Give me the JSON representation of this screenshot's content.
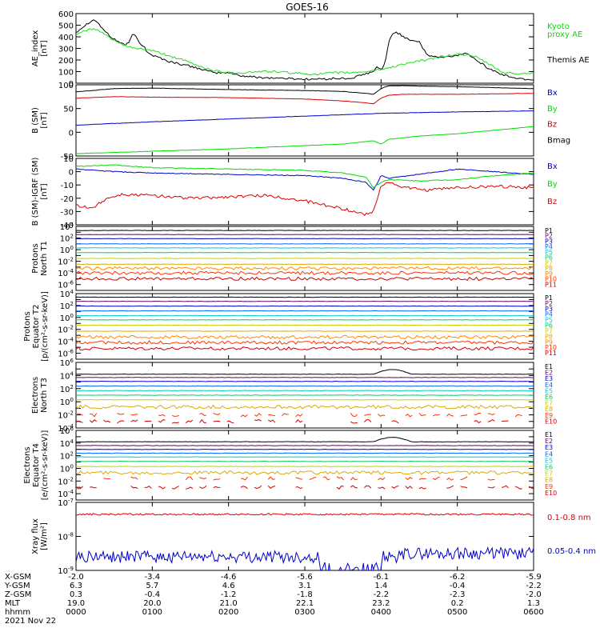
{
  "title": "GOES-16",
  "colors": {
    "black": "#000000",
    "red": "#dd0000",
    "green": "#00dd00",
    "blue": "#0000cc",
    "ae_green": "#22dd22",
    "P": [
      "#000000",
      "#660066",
      "#0000cc",
      "#0066ff",
      "#00cccc",
      "#00cc66",
      "#cccc00",
      "#ddaa00",
      "#ff8800",
      "#ff3300",
      "#cc0000"
    ],
    "E": [
      "#000000",
      "#660066",
      "#0000cc",
      "#0066ff",
      "#00cccc",
      "#00cc66",
      "#cccc00",
      "#ddaa00",
      "#ff3300",
      "#cc0000"
    ]
  },
  "chart_data": [
    {
      "type": "line",
      "name": "ae",
      "ylabel": "AE_index\n[nT]",
      "ylim": [
        0,
        600
      ],
      "ticks": [
        "0",
        "100",
        "200",
        "300",
        "400",
        "500",
        "600"
      ],
      "legend": [
        [
          "Kyoto",
          "green"
        ],
        [
          "proxy AE",
          "green"
        ],
        [
          "Themis AE",
          "black"
        ]
      ],
      "series": [
        {
          "name": "Themis AE",
          "color": "black",
          "x": [
            0,
            0.1,
            0.2,
            0.25,
            0.3,
            0.35,
            0.45,
            0.55,
            0.65,
            0.7,
            0.75,
            0.8,
            0.85,
            0.9,
            0.92,
            0.96,
            1.0,
            1.1,
            1.2,
            1.4,
            1.6,
            1.8,
            2.0,
            2.2,
            2.4,
            2.6,
            2.8,
            3.0,
            3.2,
            3.4,
            3.6,
            3.7,
            3.8,
            3.9,
            3.95,
            4.0,
            4.05,
            4.1,
            4.15,
            4.2,
            4.3,
            4.4,
            4.5,
            4.6,
            4.8,
            5.0,
            5.1,
            5.2,
            5.3,
            5.4,
            5.6,
            5.8,
            6.0
          ],
          "y": [
            440,
            490,
            540,
            545,
            510,
            470,
            400,
            360,
            330,
            350,
            440,
            380,
            330,
            320,
            280,
            260,
            240,
            220,
            190,
            160,
            130,
            90,
            90,
            60,
            50,
            45,
            40,
            35,
            35,
            40,
            40,
            60,
            80,
            100,
            140,
            120,
            160,
            350,
            430,
            440,
            400,
            370,
            360,
            240,
            220,
            240,
            260,
            230,
            180,
            130,
            70,
            40,
            30
          ]
        },
        {
          "name": "Kyoto proxy AE",
          "color": "ae_green",
          "x": [
            0,
            0.1,
            0.2,
            0.3,
            0.4,
            0.5,
            0.6,
            0.7,
            0.8,
            0.9,
            1.0,
            1.2,
            1.4,
            1.6,
            1.8,
            2.0,
            2.2,
            2.4,
            2.6,
            2.8,
            3.0,
            3.2,
            3.4,
            3.6,
            3.8,
            4.0,
            4.1,
            4.2,
            4.4,
            4.6,
            4.8,
            5.0,
            5.2,
            5.4,
            5.6,
            5.8,
            6.0
          ],
          "y": [
            420,
            450,
            470,
            450,
            410,
            370,
            330,
            310,
            300,
            290,
            280,
            240,
            200,
            150,
            110,
            90,
            90,
            100,
            100,
            90,
            80,
            80,
            90,
            90,
            100,
            120,
            130,
            150,
            180,
            200,
            230,
            250,
            240,
            170,
            90,
            80,
            90
          ]
        }
      ]
    },
    {
      "type": "line",
      "name": "bsm",
      "ylabel": "B (SM)\n[nT]",
      "ylim": [
        -50,
        100
      ],
      "ticks": [
        "-50",
        "0",
        "50",
        "100"
      ],
      "legend": [
        [
          "Bx",
          "blue"
        ],
        [
          "By",
          "green"
        ],
        [
          "Bz",
          "red"
        ],
        [
          "Bmag",
          "black"
        ]
      ],
      "series": [
        {
          "name": "Bx",
          "color": "blue",
          "x": [
            0,
            1,
            2,
            3,
            4,
            5,
            6
          ],
          "y": [
            15,
            22,
            28,
            34,
            40,
            43,
            45
          ]
        },
        {
          "name": "By",
          "color": "green",
          "x": [
            0,
            1,
            2,
            3,
            3.5,
            3.9,
            4.0,
            4.1,
            4.5,
            5,
            6
          ],
          "y": [
            -45,
            -40,
            -35,
            -28,
            -25,
            -18,
            -25,
            -15,
            -8,
            -3,
            12
          ]
        },
        {
          "name": "Bz",
          "color": "red",
          "x": [
            0,
            0.5,
            1,
            2,
            3,
            3.5,
            3.8,
            3.9,
            4.0,
            4.1,
            4.3,
            5,
            6
          ],
          "y": [
            72,
            75,
            74,
            73,
            70,
            66,
            62,
            60,
            72,
            78,
            80,
            80,
            82
          ]
        },
        {
          "name": "Bmag",
          "color": "black",
          "x": [
            0,
            0.5,
            1,
            2,
            3,
            3.5,
            3.8,
            3.9,
            4.0,
            4.1,
            4.3,
            5,
            6
          ],
          "y": [
            85,
            92,
            93,
            90,
            88,
            86,
            82,
            80,
            92,
            98,
            98,
            96,
            92
          ]
        }
      ]
    },
    {
      "type": "line",
      "name": "bigrf",
      "ylabel": "B (SM)-IGRF (SM)\n[nT]",
      "ylim": [
        -40,
        10
      ],
      "ticks": [
        "-40",
        "-30",
        "-20",
        "-10",
        "0",
        "10"
      ],
      "legend": [
        [
          "Bx",
          "blue"
        ],
        [
          "By",
          "green"
        ],
        [
          "Bz",
          "red"
        ]
      ],
      "series": [
        {
          "name": "Bx",
          "color": "blue",
          "x": [
            0,
            0.5,
            1,
            2,
            3,
            3.5,
            3.8,
            3.9,
            4.0,
            4.1,
            4.5,
            5,
            5.5,
            6
          ],
          "y": [
            2,
            0,
            -1,
            -2,
            -3,
            -5,
            -8,
            -14,
            -3,
            -5,
            -2,
            2,
            0,
            -2
          ]
        },
        {
          "name": "By",
          "color": "green",
          "x": [
            0,
            0.5,
            1,
            2,
            3,
            3.5,
            3.8,
            3.9,
            4.0,
            4.1,
            4.5,
            5,
            5.5,
            6
          ],
          "y": [
            4,
            5,
            3,
            2,
            1,
            -1,
            -4,
            -12,
            -8,
            -6,
            -7,
            -6,
            -3,
            -1
          ]
        },
        {
          "name": "Bz",
          "color": "red",
          "x": [
            0,
            0.2,
            0.4,
            0.6,
            1,
            1.5,
            2,
            2.5,
            3,
            3.5,
            3.8,
            3.9,
            4.0,
            4.1,
            4.3,
            4.6,
            5,
            5.5,
            6
          ],
          "y": [
            -25,
            -28,
            -20,
            -17,
            -18,
            -20,
            -19,
            -18,
            -22,
            -28,
            -32,
            -30,
            -10,
            -8,
            -12,
            -14,
            -12,
            -11,
            -12
          ]
        }
      ]
    },
    {
      "type": "line",
      "name": "protons-t1",
      "log": true,
      "ylabel": "Protons\nNorth T1",
      "ylim_exp": [
        -7,
        4
      ],
      "ticks_exp": [
        4,
        2,
        0,
        -2,
        -4,
        -6
      ],
      "channels": [
        "P1",
        "P2",
        "P3",
        "P4",
        "P5",
        "P6",
        "P7",
        "P8",
        "P9",
        "P10",
        "P11"
      ],
      "levels_exp": [
        3.3,
        2.6,
        1.9,
        1.0,
        0.3,
        -0.5,
        -1.5,
        -2.5,
        -3.2,
        -4.0,
        -5.0
      ]
    },
    {
      "type": "line",
      "name": "protons-t2",
      "log": true,
      "ylabel": "Protons\nEquator T2\n[p/(cm²-s-sr-keV)]",
      "ylim_exp": [
        -7,
        4
      ],
      "ticks_exp": [
        4,
        2,
        0,
        -2,
        -4,
        -6
      ],
      "channels": [
        "P1",
        "P2",
        "P3",
        "P4",
        "P5",
        "P6",
        "P7",
        "P8",
        "P9",
        "P10",
        "P11"
      ],
      "levels_exp": [
        3.4,
        2.7,
        1.9,
        1.1,
        0.3,
        -0.4,
        -1.3,
        -2.3,
        -3.3,
        -4.2,
        -5.2
      ]
    },
    {
      "type": "line",
      "name": "electrons-t3",
      "log": true,
      "ylabel": "Electrons\nNorth T3",
      "ylim_exp": [
        -4,
        6
      ],
      "ticks_exp": [
        6,
        4,
        2,
        0,
        -2,
        -4
      ],
      "channels": [
        "E1",
        "E2",
        "E3",
        "E4",
        "E5",
        "E6",
        "E7",
        "E8",
        "E9",
        "E10"
      ],
      "levels_exp": [
        4.2,
        3.7,
        3.1,
        2.4,
        1.7,
        1.0,
        0.3,
        -0.8,
        -2.0,
        -3.0
      ]
    },
    {
      "type": "line",
      "name": "electrons-t4",
      "log": true,
      "ylabel": "Electrons\nEquator T4\n[e/(cm²-s-sr-keV)]",
      "ylim_exp": [
        -5,
        6
      ],
      "ticks_exp": [
        6,
        4,
        2,
        0,
        -2,
        -4
      ],
      "channels": [
        "E1",
        "E2",
        "E3",
        "E4",
        "E5",
        "E6",
        "E7",
        "E8",
        "E9",
        "E10"
      ],
      "levels_exp": [
        4.2,
        3.6,
        3.0,
        2.4,
        1.8,
        1.1,
        0.3,
        -0.7,
        -1.6,
        -3.0
      ]
    },
    {
      "type": "line",
      "name": "xray",
      "log": true,
      "ylabel": "Xray flux\n[W/m²]",
      "ylim_exp": [
        -9,
        -7
      ],
      "ticks_exp": [
        -7,
        -8,
        -9
      ],
      "legend": [
        [
          "0.1-0.8 nm",
          "red"
        ],
        [
          "0.05-0.4 nm",
          "blue"
        ]
      ],
      "series": [
        {
          "name": "0.1-0.8 nm",
          "color": "red",
          "level_exp": -7.35
        },
        {
          "name": "0.05-0.4 nm",
          "color": "blue",
          "level_exp": -8.6
        }
      ]
    }
  ],
  "xaxis": {
    "hours": [
      0,
      1,
      2,
      3,
      4,
      5,
      6
    ],
    "row_labels": [
      "X-GSM",
      "Y-GSM",
      "Z-GSM",
      "MLT",
      "hhmm"
    ],
    "rows": [
      [
        "-2.0",
        "-3.4",
        "-4.6",
        "-5.6",
        "-6.1",
        "-6.2",
        "-5.9"
      ],
      [
        "6.3",
        "5.7",
        "4.6",
        "3.1",
        "1.4",
        "-0.4",
        "-2.2"
      ],
      [
        "0.3",
        "-0.4",
        "-1.2",
        "-1.8",
        "-2.2",
        "-2.3",
        "-2.0"
      ],
      [
        "19.0",
        "20.0",
        "21.0",
        "22.1",
        "23.2",
        "0.2",
        "1.3"
      ],
      [
        "0000",
        "0100",
        "0200",
        "0300",
        "0400",
        "0500",
        "0600"
      ]
    ],
    "date": "2021 Nov 22"
  }
}
